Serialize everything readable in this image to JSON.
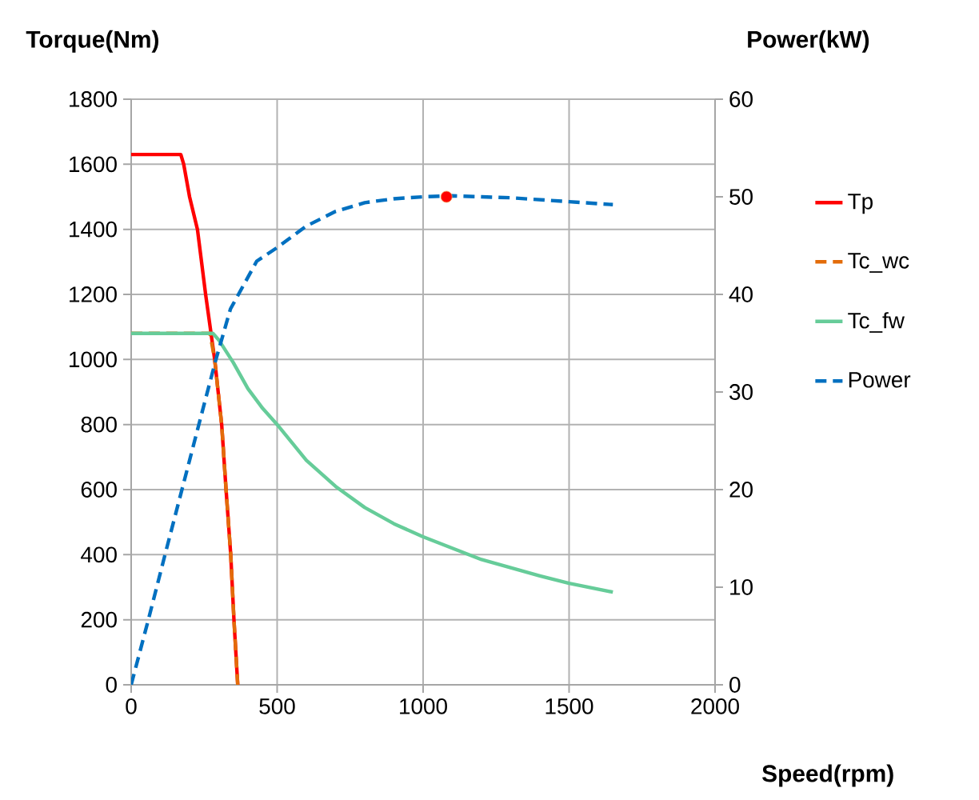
{
  "chart_data": {
    "type": "line",
    "xlabel": "Speed(rpm)",
    "ylabel": "Torque(Nm)",
    "y2label": "Power(kW)",
    "xlim": [
      0,
      2000
    ],
    "xticks": [
      0,
      500,
      1000,
      1500,
      2000
    ],
    "ylim": [
      0,
      1800
    ],
    "yticks": [
      0,
      200,
      400,
      600,
      800,
      1000,
      1200,
      1400,
      1600,
      1800
    ],
    "y2lim": [
      0,
      60
    ],
    "y2ticks": [
      0,
      10,
      20,
      30,
      40,
      50,
      60
    ],
    "grid": true,
    "legend": "right",
    "marker": "none",
    "series": [
      {
        "name": "Tp",
        "color": "#ff0000",
        "line_style": "solid",
        "x": [
          0,
          170,
          180,
          200,
          227,
          255,
          286,
          310,
          325,
          341,
          352,
          365
        ],
        "values": [
          1630,
          1630,
          1600,
          1500,
          1400,
          1200,
          1000,
          800,
          600,
          400,
          200,
          0
        ]
      },
      {
        "name": "Tc_wc",
        "color": "#e36c0a",
        "line_style": "dashed",
        "x": [
          0,
          270,
          286,
          310,
          325,
          341,
          352,
          365
        ],
        "values": [
          1080,
          1080,
          1000,
          800,
          600,
          400,
          200,
          0
        ]
      },
      {
        "name": "Tc_fw",
        "color": "#66cc99",
        "line_style": "solid",
        "x": [
          0,
          280,
          300,
          350,
          400,
          450,
          500,
          600,
          700,
          800,
          900,
          1000,
          1100,
          1200,
          1300,
          1400,
          1500,
          1650
        ],
        "values": [
          1080,
          1080,
          1060,
          990,
          910,
          850,
          800,
          690,
          610,
          545,
          495,
          455,
          420,
          385,
          360,
          335,
          312,
          285
        ]
      },
      {
        "name": "Power",
        "color": "#0070c0",
        "line_style": "dashed",
        "axis": "y2",
        "x": [
          0,
          60,
          120,
          180,
          240,
          290,
          340,
          430,
          500,
          600,
          700,
          800,
          900,
          1000,
          1100,
          1200,
          1300,
          1400,
          1500,
          1650
        ],
        "values": [
          0,
          6.8,
          13.8,
          20.7,
          27.6,
          33.3,
          38.5,
          43.4,
          44.8,
          47,
          48.5,
          49.4,
          49.8,
          50,
          50.1,
          50,
          49.9,
          49.7,
          49.5,
          49.2
        ]
      },
      {
        "type": "scatter",
        "marker": "circle",
        "color": "#ff0000",
        "axis": "y2",
        "x": [
          1080
        ],
        "values": [
          50
        ]
      }
    ]
  }
}
